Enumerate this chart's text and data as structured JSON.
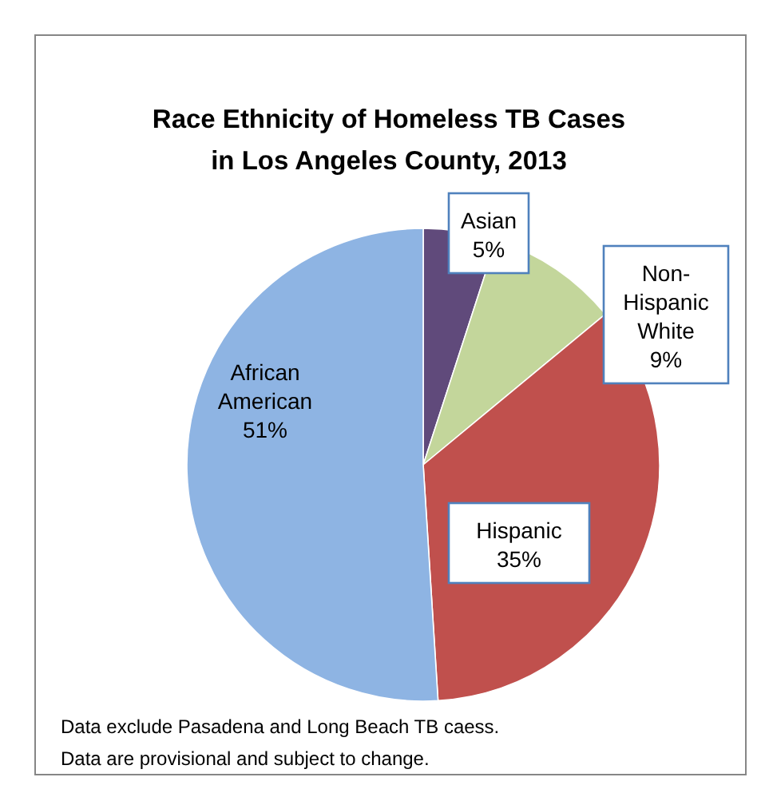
{
  "chart_data": {
    "type": "pie",
    "title": "Race Ethnicity of Homeless TB Cases in Los Angeles County, 2013",
    "categories": [
      "Asian",
      "Non-Hispanic White",
      "Hispanic",
      "African American"
    ],
    "values": [
      5,
      9,
      35,
      51
    ],
    "colors": [
      "#604a7b",
      "#c3d69b",
      "#c0504d",
      "#8eb4e3"
    ],
    "value_labels": [
      "5%",
      "9%",
      "35%",
      "51%"
    ],
    "legend": false,
    "annotations": [
      "Data exclude Pasadena and Long Beach TB caess.",
      "Data are provisional and subject to change."
    ]
  }
}
